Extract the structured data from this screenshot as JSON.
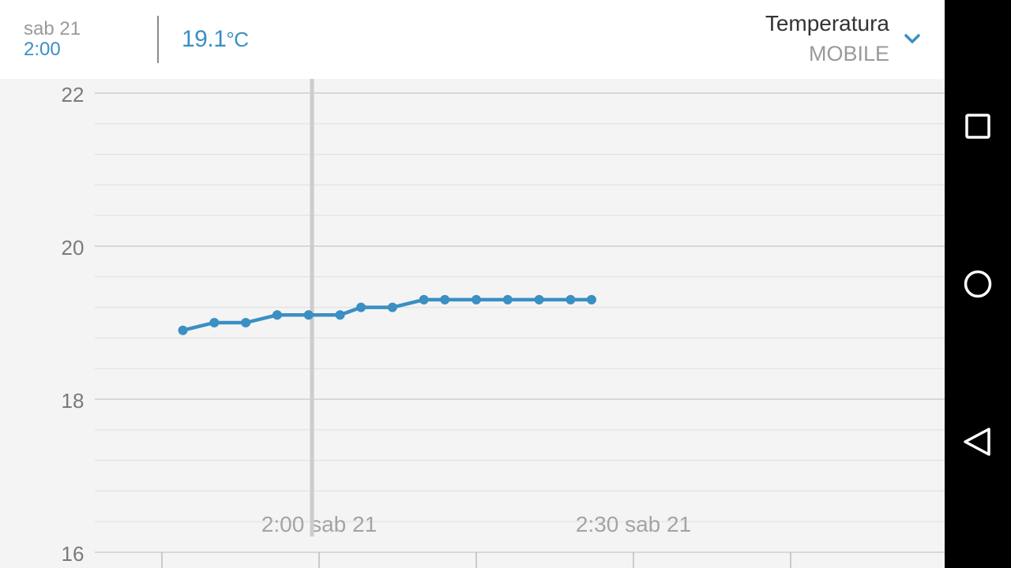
{
  "header": {
    "date": "sab 21",
    "time": "2:00",
    "value": "19.1",
    "unit": "°C"
  },
  "selector": {
    "title": "Temperatura",
    "subtitle": "MOBILE",
    "icon": "chevron-down-icon"
  },
  "colors": {
    "accent": "#3a8fc3",
    "background": "#f4f4f4",
    "header": "#ffffff",
    "gridline_major": "#cfcfcf",
    "gridline_minor": "#e2e2e2",
    "cursor": "#cccccc",
    "nav_bar": "#000000"
  },
  "nav_bar": {
    "buttons": [
      "recents-square-icon",
      "home-circle-icon",
      "back-triangle-icon"
    ]
  },
  "chart_data": {
    "type": "line",
    "ylim": [
      16,
      22
    ],
    "y_ticks": [
      "16",
      "18",
      "20",
      "22"
    ],
    "x_labels": [
      "2:00 sab 21",
      "2:30 sab 21"
    ],
    "cursor_time": "2:00",
    "series": [
      {
        "x": [
          "1:47",
          "1:50",
          "1:53",
          "1:56",
          "1:59",
          "2:02",
          "2:04",
          "2:07",
          "2:10",
          "2:12",
          "2:15",
          "2:18",
          "2:21",
          "2:24",
          "2:26"
        ],
        "values": [
          18.9,
          19.0,
          19.0,
          19.1,
          19.1,
          19.1,
          19.2,
          19.2,
          19.3,
          19.3,
          19.3,
          19.3,
          19.3,
          19.3,
          19.3
        ]
      }
    ]
  }
}
